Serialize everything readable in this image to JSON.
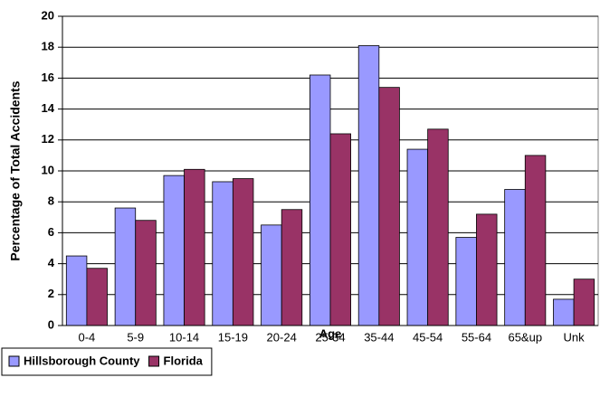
{
  "chart_data": {
    "type": "bar",
    "xlabel": "Age",
    "ylabel": "Percentage of Total Accidents",
    "categories": [
      "0-4",
      "5-9",
      "10-14",
      "15-19",
      "20-24",
      "25-34",
      "35-44",
      "45-54",
      "55-64",
      "65&up",
      "Unk"
    ],
    "series": [
      {
        "name": "Hillsborough County",
        "color": "#9999ff",
        "values": [
          4.5,
          7.6,
          9.7,
          9.3,
          6.5,
          16.2,
          18.1,
          11.4,
          5.7,
          8.8,
          1.7
        ]
      },
      {
        "name": "Florida",
        "color": "#993366",
        "values": [
          3.7,
          6.8,
          10.1,
          9.5,
          7.5,
          12.4,
          15.4,
          12.7,
          7.2,
          11.0,
          3.0
        ]
      }
    ],
    "ylim": [
      0,
      20
    ],
    "yticks": [
      0,
      2,
      4,
      6,
      8,
      10,
      12,
      14,
      16,
      18,
      20
    ],
    "grid": true,
    "legend": "bottom-left"
  }
}
